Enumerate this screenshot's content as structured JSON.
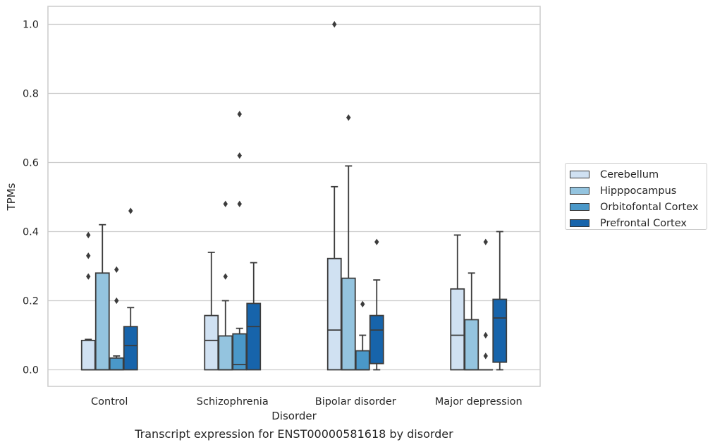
{
  "chart_data": {
    "type": "box",
    "xlabel": "Disorder",
    "ylabel": "TPMs",
    "ylim": [
      -0.048,
      1.052
    ],
    "yticks": [
      "0.0",
      "0.2",
      "0.4",
      "0.6",
      "0.8",
      "1.0"
    ],
    "grid": "horizontal",
    "legend_position": "right",
    "categories": [
      "Control",
      "Schizophrenia",
      "Bipolar disorder",
      "Major depression"
    ],
    "series": [
      {
        "name": "Cerebellum",
        "color": "#d0e1f2",
        "boxes": [
          {
            "q1": 0.0,
            "median": 0.0,
            "q3": 0.085,
            "whisker_low": 0.0,
            "whisker_high": 0.088,
            "outliers": [
              0.27,
              0.33,
              0.39
            ]
          },
          {
            "q1": 0.0,
            "median": 0.085,
            "q3": 0.157,
            "whisker_low": 0.0,
            "whisker_high": 0.34,
            "outliers": []
          },
          {
            "q1": 0.0,
            "median": 0.115,
            "q3": 0.322,
            "whisker_low": 0.0,
            "whisker_high": 0.53,
            "outliers": [
              1.0
            ]
          },
          {
            "q1": 0.0,
            "median": 0.1,
            "q3": 0.234,
            "whisker_low": 0.0,
            "whisker_high": 0.39,
            "outliers": []
          }
        ]
      },
      {
        "name": "Hipppocampus",
        "color": "#94c4df",
        "boxes": [
          {
            "q1": 0.0,
            "median": 0.0,
            "q3": 0.28,
            "whisker_low": 0.0,
            "whisker_high": 0.42,
            "outliers": []
          },
          {
            "q1": 0.0,
            "median": 0.0,
            "q3": 0.098,
            "whisker_low": 0.0,
            "whisker_high": 0.2,
            "outliers": [
              0.27,
              0.48
            ]
          },
          {
            "q1": 0.0,
            "median": 0.0,
            "q3": 0.265,
            "whisker_low": 0.0,
            "whisker_high": 0.59,
            "outliers": [
              0.73
            ]
          },
          {
            "q1": 0.0,
            "median": 0.0,
            "q3": 0.145,
            "whisker_low": 0.0,
            "whisker_high": 0.28,
            "outliers": []
          }
        ]
      },
      {
        "name": "Orbitofontal Cortex",
        "color": "#4a98c9",
        "boxes": [
          {
            "q1": 0.0,
            "median": 0.0,
            "q3": 0.034,
            "whisker_low": 0.0,
            "whisker_high": 0.04,
            "outliers": [
              0.2,
              0.29
            ]
          },
          {
            "q1": 0.0,
            "median": 0.015,
            "q3": 0.104,
            "whisker_low": 0.0,
            "whisker_high": 0.12,
            "outliers": [
              0.48,
              0.62,
              0.74
            ]
          },
          {
            "q1": 0.0,
            "median": 0.0,
            "q3": 0.055,
            "whisker_low": 0.0,
            "whisker_high": 0.1,
            "outliers": [
              0.19
            ]
          },
          {
            "q1": 0.0,
            "median": 0.0,
            "q3": 0.0,
            "whisker_low": 0.0,
            "whisker_high": 0.0,
            "outliers": [
              0.04,
              0.1,
              0.37
            ]
          }
        ]
      },
      {
        "name": "Prefrontal Cortex",
        "color": "#1764ab",
        "boxes": [
          {
            "q1": 0.0,
            "median": 0.07,
            "q3": 0.125,
            "whisker_low": 0.0,
            "whisker_high": 0.18,
            "outliers": [
              0.46
            ]
          },
          {
            "q1": 0.0,
            "median": 0.125,
            "q3": 0.192,
            "whisker_low": 0.0,
            "whisker_high": 0.31,
            "outliers": []
          },
          {
            "q1": 0.018,
            "median": 0.115,
            "q3": 0.157,
            "whisker_low": 0.0,
            "whisker_high": 0.26,
            "outliers": [
              0.37
            ]
          },
          {
            "q1": 0.022,
            "median": 0.15,
            "q3": 0.204,
            "whisker_low": 0.0,
            "whisker_high": 0.4,
            "outliers": []
          }
        ]
      }
    ]
  },
  "caption": "Transcript expression for ENST00000581618 by disorder"
}
